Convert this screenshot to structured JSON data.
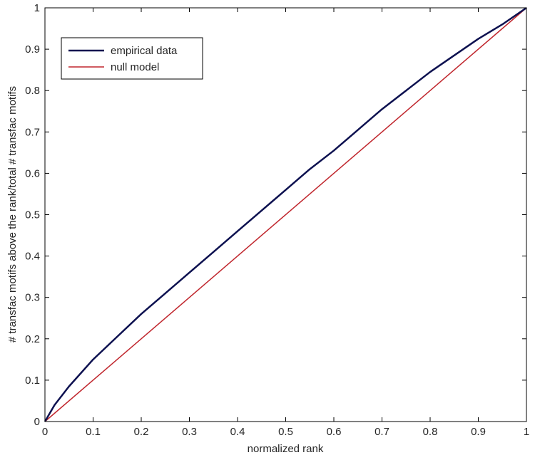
{
  "chart_data": {
    "type": "line",
    "title": "",
    "xlabel": "normalized rank",
    "ylabel": "# transfac motifs above the rank/total # transfac motifs",
    "xlim": [
      0,
      1
    ],
    "ylim": [
      0,
      1
    ],
    "xticks": [
      "0",
      "0.1",
      "0.2",
      "0.3",
      "0.4",
      "0.5",
      "0.6",
      "0.7",
      "0.8",
      "0.9",
      "1"
    ],
    "yticks": [
      "0",
      "0.1",
      "0.2",
      "0.3",
      "0.4",
      "0.5",
      "0.6",
      "0.7",
      "0.8",
      "0.9",
      "1"
    ],
    "grid": false,
    "legend_position": "top-left",
    "series": [
      {
        "name": "empirical data",
        "color": "#0d1150",
        "x": [
          0,
          0.01,
          0.02,
          0.05,
          0.1,
          0.15,
          0.2,
          0.25,
          0.3,
          0.35,
          0.4,
          0.45,
          0.5,
          0.55,
          0.6,
          0.65,
          0.7,
          0.75,
          0.8,
          0.85,
          0.9,
          0.95,
          1.0
        ],
        "y": [
          0,
          0.02,
          0.04,
          0.085,
          0.15,
          0.205,
          0.26,
          0.31,
          0.36,
          0.41,
          0.46,
          0.51,
          0.56,
          0.61,
          0.655,
          0.705,
          0.755,
          0.8,
          0.845,
          0.885,
          0.925,
          0.96,
          1.0
        ]
      },
      {
        "name": "null model",
        "color": "#c0262d",
        "x": [
          0,
          1
        ],
        "y": [
          0,
          1
        ]
      }
    ]
  }
}
